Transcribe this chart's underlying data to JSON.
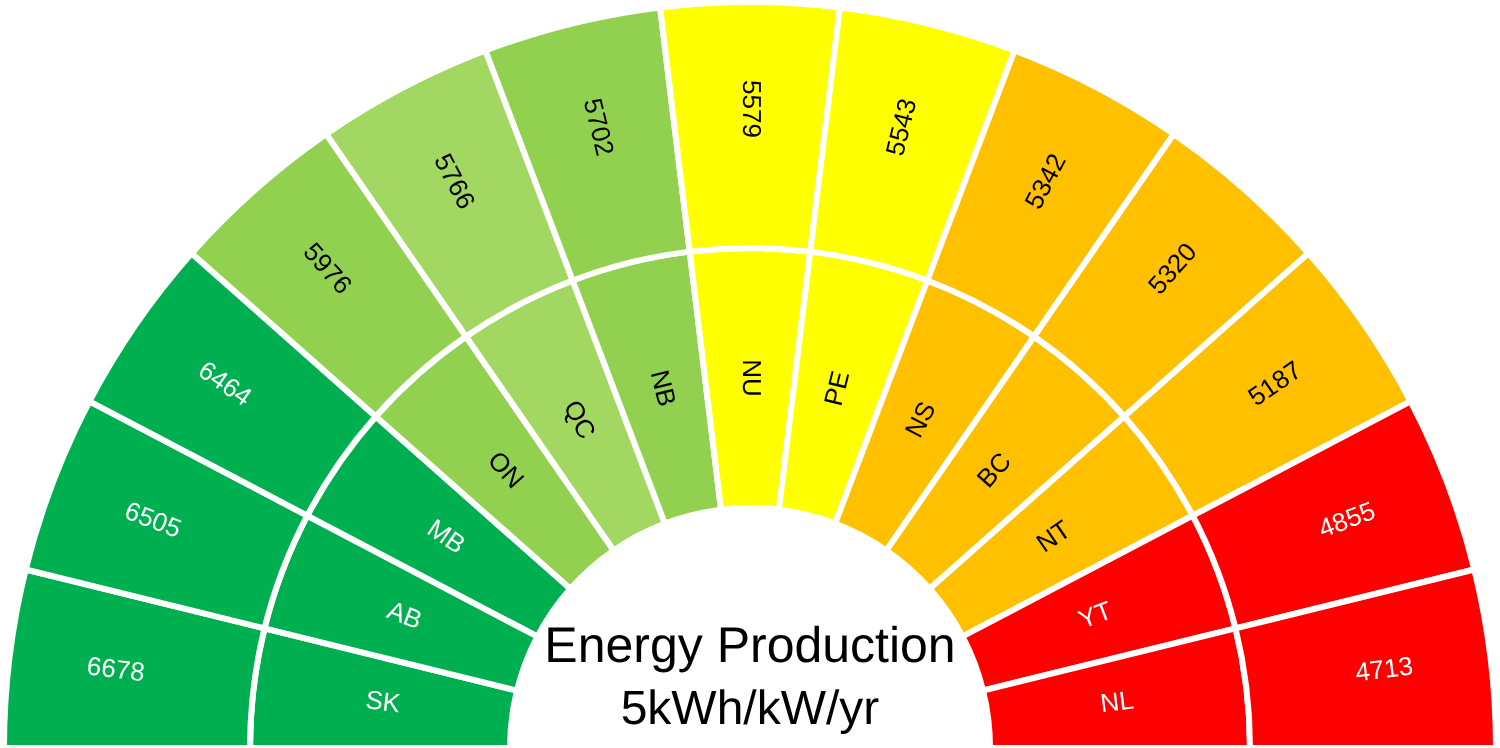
{
  "chart_data": {
    "type": "other",
    "title": "Energy Production",
    "subtitle": "5kWh/kW/yr",
    "categories": [
      "SK",
      "AB",
      "MB",
      "ON",
      "QC",
      "NB",
      "NU",
      "PE",
      "NS",
      "BC",
      "NT",
      "YT",
      "NL"
    ],
    "values": [
      6678,
      6505,
      6464,
      5976,
      5766,
      5702,
      5579,
      5543,
      5342,
      5320,
      5187,
      4855,
      4713
    ],
    "colors": [
      "#00b050",
      "#00b050",
      "#00b050",
      "#92d050",
      "#a2d862",
      "#92d050",
      "#ffff00",
      "#ffff00",
      "#ffc000",
      "#ffc000",
      "#ffc000",
      "#ff0000",
      "#ff0000"
    ],
    "data_labels": true
  }
}
